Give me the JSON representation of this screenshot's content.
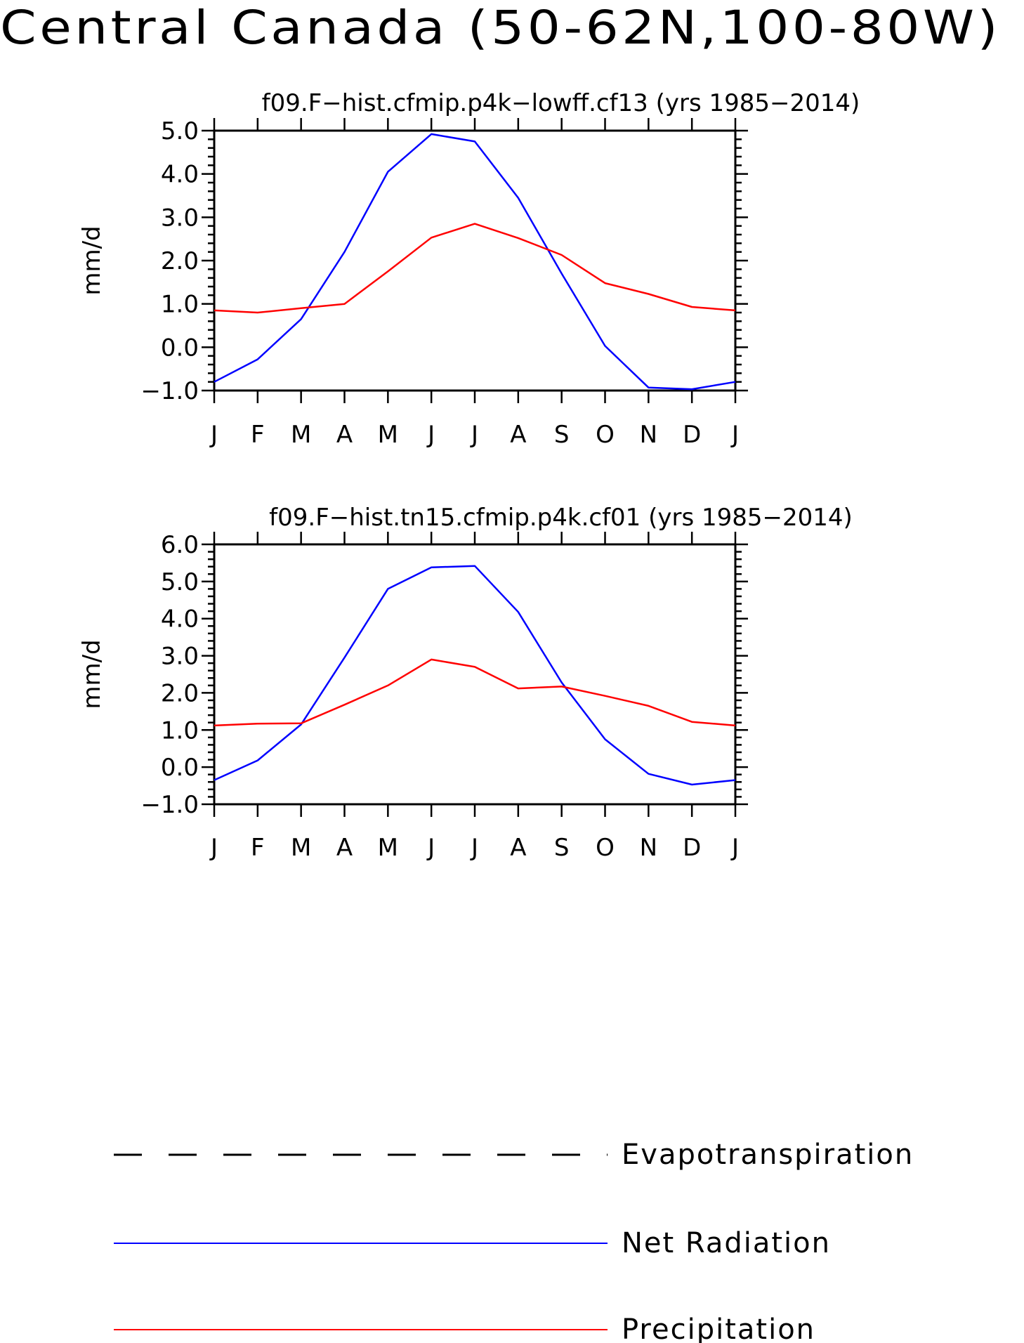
{
  "page_title": "Central Canada (50-62N,100-80W)",
  "colors": {
    "net_radiation": "#0000ff",
    "precipitation": "#ff0000",
    "evapotranspiration": "#000000",
    "axis": "#000000"
  },
  "chart_data": [
    {
      "type": "line",
      "title": "f09.F-hist.cfmip.p4k-lowff.cf13 (yrs 1985-2014)",
      "xlabel": "",
      "ylabel": "mm/d",
      "x": [
        "J",
        "F",
        "M",
        "A",
        "M",
        "J",
        "J",
        "A",
        "S",
        "O",
        "N",
        "D",
        "J"
      ],
      "ylim": [
        -1.0,
        5.0
      ],
      "yticks": [
        "5.0",
        "4.0",
        "3.0",
        "2.0",
        "1.0",
        "0.0",
        "-1.0"
      ],
      "series": [
        {
          "name": "Net Radiation",
          "values": [
            -0.8,
            -0.28,
            0.65,
            2.2,
            4.05,
            4.92,
            4.75,
            3.45,
            1.7,
            0.03,
            -0.93,
            -0.97,
            -0.8
          ]
        },
        {
          "name": "Precipitation",
          "values": [
            0.85,
            0.8,
            0.9,
            1.0,
            1.75,
            2.53,
            2.85,
            2.52,
            2.13,
            1.48,
            1.23,
            0.93,
            0.85
          ]
        }
      ]
    },
    {
      "type": "line",
      "title": "f09.F-hist.tn15.cfmip.p4k.cf01 (yrs 1985-2014)",
      "xlabel": "",
      "ylabel": "mm/d",
      "x": [
        "J",
        "F",
        "M",
        "A",
        "M",
        "J",
        "J",
        "A",
        "S",
        "O",
        "N",
        "D",
        "J"
      ],
      "ylim": [
        -1.0,
        6.0
      ],
      "yticks": [
        "6.0",
        "5.0",
        "4.0",
        "3.0",
        "2.0",
        "1.0",
        "0.0",
        "-1.0"
      ],
      "series": [
        {
          "name": "Net Radiation",
          "values": [
            -0.35,
            0.18,
            1.15,
            2.95,
            4.8,
            5.38,
            5.42,
            4.18,
            2.28,
            0.75,
            -0.18,
            -0.47,
            -0.35
          ]
        },
        {
          "name": "Precipitation",
          "values": [
            1.12,
            1.17,
            1.18,
            1.68,
            2.2,
            2.9,
            2.7,
            2.12,
            2.17,
            1.92,
            1.65,
            1.22,
            1.12
          ]
        }
      ]
    }
  ],
  "legend": [
    {
      "label": "Evapotranspiration",
      "style": "dashed",
      "color": "#000000"
    },
    {
      "label": "Net Radiation",
      "style": "solid",
      "color": "#0000ff"
    },
    {
      "label": "Precipitation",
      "style": "solid",
      "color": "#ff0000"
    }
  ]
}
